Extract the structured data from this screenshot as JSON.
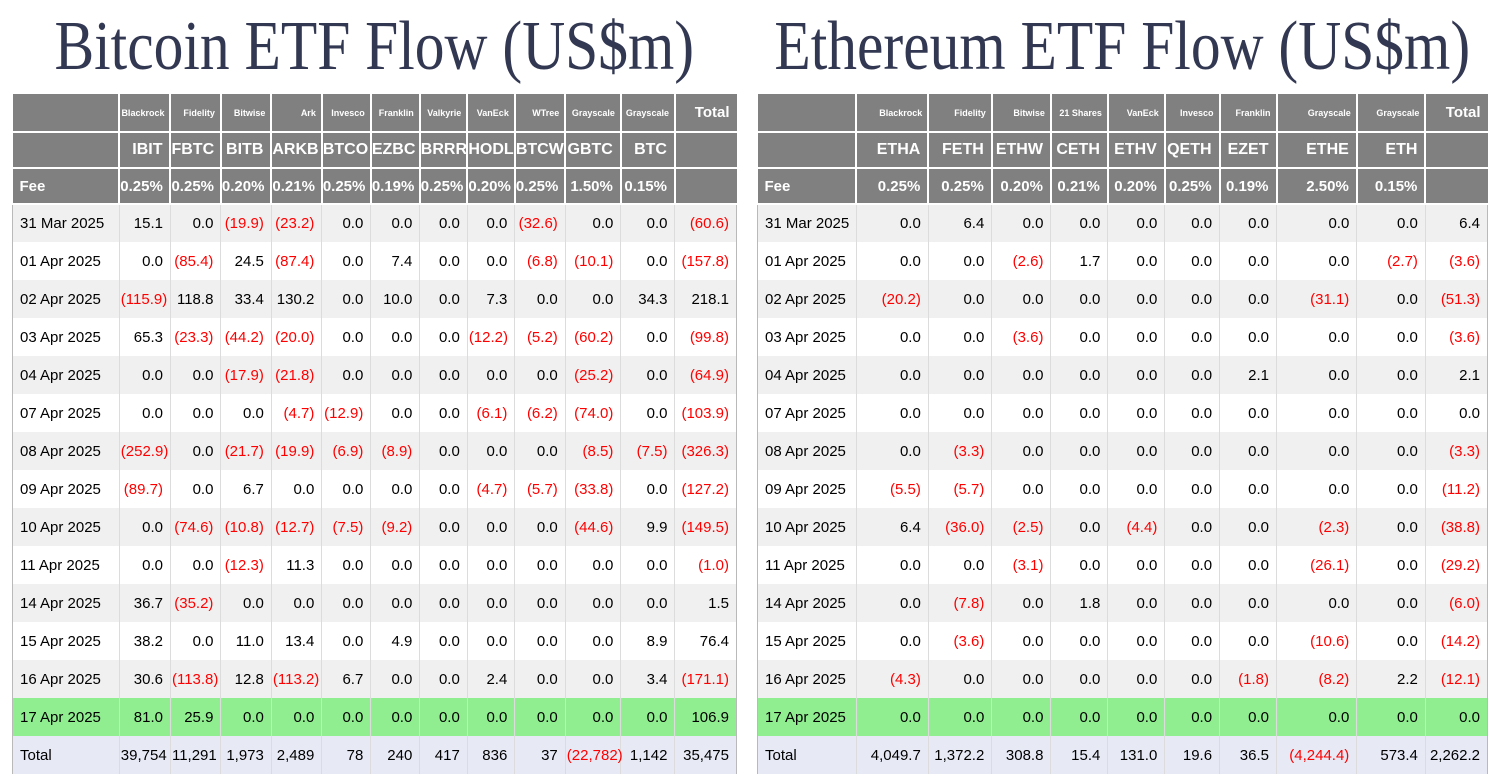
{
  "colors": {
    "header_gray": "#808080",
    "stripe_gray": "#f0f0f0",
    "highlight_green": "#90EE90",
    "total_row_blue": "#E7EAF5",
    "negative_red": "#FF0000",
    "title_navy": "#333852"
  },
  "tables": [
    {
      "title": "Bitcoin ETF Flow (US$m)",
      "providers": [
        "Blackrock",
        "Fidelity",
        "Bitwise",
        "Ark",
        "Invesco",
        "Franklin",
        "Valkyrie",
        "VanEck",
        "WTree",
        "Grayscale",
        "Grayscale"
      ],
      "tickers": [
        "IBIT",
        "FBTC",
        "BITB",
        "ARKB",
        "BTCO",
        "EZBC",
        "BRRR",
        "HODL",
        "BTCW",
        "GBTC",
        "BTC"
      ],
      "fee_label": "Fee",
      "fees": [
        "0.25%",
        "0.25%",
        "0.20%",
        "0.21%",
        "0.25%",
        "0.19%",
        "0.25%",
        "0.20%",
        "0.25%",
        "1.50%",
        "0.15%"
      ],
      "total_label": "Total",
      "highlighted_date": "17 Apr 2025",
      "rows": [
        {
          "date": "31 Mar 2025",
          "values": [
            "15.1",
            "0.0",
            "(19.9)",
            "(23.2)",
            "0.0",
            "0.0",
            "0.0",
            "0.0",
            "(32.6)",
            "0.0",
            "0.0"
          ],
          "total": "(60.6)"
        },
        {
          "date": "01 Apr 2025",
          "values": [
            "0.0",
            "(85.4)",
            "24.5",
            "(87.4)",
            "0.0",
            "7.4",
            "0.0",
            "0.0",
            "(6.8)",
            "(10.1)",
            "0.0"
          ],
          "total": "(157.8)"
        },
        {
          "date": "02 Apr 2025",
          "values": [
            "(115.9)",
            "118.8",
            "33.4",
            "130.2",
            "0.0",
            "10.0",
            "0.0",
            "7.3",
            "0.0",
            "0.0",
            "34.3"
          ],
          "total": "218.1"
        },
        {
          "date": "03 Apr 2025",
          "values": [
            "65.3",
            "(23.3)",
            "(44.2)",
            "(20.0)",
            "0.0",
            "0.0",
            "0.0",
            "(12.2)",
            "(5.2)",
            "(60.2)",
            "0.0"
          ],
          "total": "(99.8)"
        },
        {
          "date": "04 Apr 2025",
          "values": [
            "0.0",
            "0.0",
            "(17.9)",
            "(21.8)",
            "0.0",
            "0.0",
            "0.0",
            "0.0",
            "0.0",
            "(25.2)",
            "0.0"
          ],
          "total": "(64.9)"
        },
        {
          "date": "07 Apr 2025",
          "values": [
            "0.0",
            "0.0",
            "0.0",
            "(4.7)",
            "(12.9)",
            "0.0",
            "0.0",
            "(6.1)",
            "(6.2)",
            "(74.0)",
            "0.0"
          ],
          "total": "(103.9)"
        },
        {
          "date": "08 Apr 2025",
          "values": [
            "(252.9)",
            "0.0",
            "(21.7)",
            "(19.9)",
            "(6.9)",
            "(8.9)",
            "0.0",
            "0.0",
            "0.0",
            "(8.5)",
            "(7.5)"
          ],
          "total": "(326.3)"
        },
        {
          "date": "09 Apr 2025",
          "values": [
            "(89.7)",
            "0.0",
            "6.7",
            "0.0",
            "0.0",
            "0.0",
            "0.0",
            "(4.7)",
            "(5.7)",
            "(33.8)",
            "0.0"
          ],
          "total": "(127.2)"
        },
        {
          "date": "10 Apr 2025",
          "values": [
            "0.0",
            "(74.6)",
            "(10.8)",
            "(12.7)",
            "(7.5)",
            "(9.2)",
            "0.0",
            "0.0",
            "0.0",
            "(44.6)",
            "9.9"
          ],
          "total": "(149.5)"
        },
        {
          "date": "11 Apr 2025",
          "values": [
            "0.0",
            "0.0",
            "(12.3)",
            "11.3",
            "0.0",
            "0.0",
            "0.0",
            "0.0",
            "0.0",
            "0.0",
            "0.0"
          ],
          "total": "(1.0)"
        },
        {
          "date": "14 Apr 2025",
          "values": [
            "36.7",
            "(35.2)",
            "0.0",
            "0.0",
            "0.0",
            "0.0",
            "0.0",
            "0.0",
            "0.0",
            "0.0",
            "0.0"
          ],
          "total": "1.5"
        },
        {
          "date": "15 Apr 2025",
          "values": [
            "38.2",
            "0.0",
            "11.0",
            "13.4",
            "0.0",
            "4.9",
            "0.0",
            "0.0",
            "0.0",
            "0.0",
            "8.9"
          ],
          "total": "76.4"
        },
        {
          "date": "16 Apr 2025",
          "values": [
            "30.6",
            "(113.8)",
            "12.8",
            "(113.2)",
            "6.7",
            "0.0",
            "0.0",
            "2.4",
            "0.0",
            "0.0",
            "3.4"
          ],
          "total": "(171.1)"
        },
        {
          "date": "17 Apr 2025",
          "values": [
            "81.0",
            "25.9",
            "0.0",
            "0.0",
            "0.0",
            "0.0",
            "0.0",
            "0.0",
            "0.0",
            "0.0",
            "0.0"
          ],
          "total": "106.9"
        }
      ],
      "totals": {
        "label": "Total",
        "values": [
          "39,754",
          "11,291",
          "1,973",
          "2,489",
          "78",
          "240",
          "417",
          "836",
          "37",
          "(22,782)",
          "1,142"
        ],
        "total": "35,475"
      }
    },
    {
      "title": "Ethereum ETF Flow (US$m)",
      "providers": [
        "Blackrock",
        "Fidelity",
        "Bitwise",
        "21 Shares",
        "VanEck",
        "Invesco",
        "Franklin",
        "Grayscale",
        "Grayscale"
      ],
      "tickers": [
        "ETHA",
        "FETH",
        "ETHW",
        "CETH",
        "ETHV",
        "QETH",
        "EZET",
        "ETHE",
        "ETH"
      ],
      "fee_label": "Fee",
      "fees": [
        "0.25%",
        "0.25%",
        "0.20%",
        "0.21%",
        "0.20%",
        "0.25%",
        "0.19%",
        "2.50%",
        "0.15%"
      ],
      "total_label": "Total",
      "highlighted_date": "17 Apr 2025",
      "rows": [
        {
          "date": "31 Mar 2025",
          "values": [
            "0.0",
            "6.4",
            "0.0",
            "0.0",
            "0.0",
            "0.0",
            "0.0",
            "0.0",
            "0.0"
          ],
          "total": "6.4"
        },
        {
          "date": "01 Apr 2025",
          "values": [
            "0.0",
            "0.0",
            "(2.6)",
            "1.7",
            "0.0",
            "0.0",
            "0.0",
            "0.0",
            "(2.7)"
          ],
          "total": "(3.6)"
        },
        {
          "date": "02 Apr 2025",
          "values": [
            "(20.2)",
            "0.0",
            "0.0",
            "0.0",
            "0.0",
            "0.0",
            "0.0",
            "(31.1)",
            "0.0"
          ],
          "total": "(51.3)"
        },
        {
          "date": "03 Apr 2025",
          "values": [
            "0.0",
            "0.0",
            "(3.6)",
            "0.0",
            "0.0",
            "0.0",
            "0.0",
            "0.0",
            "0.0"
          ],
          "total": "(3.6)"
        },
        {
          "date": "04 Apr 2025",
          "values": [
            "0.0",
            "0.0",
            "0.0",
            "0.0",
            "0.0",
            "0.0",
            "2.1",
            "0.0",
            "0.0"
          ],
          "total": "2.1"
        },
        {
          "date": "07 Apr 2025",
          "values": [
            "0.0",
            "0.0",
            "0.0",
            "0.0",
            "0.0",
            "0.0",
            "0.0",
            "0.0",
            "0.0"
          ],
          "total": "0.0"
        },
        {
          "date": "08 Apr 2025",
          "values": [
            "0.0",
            "(3.3)",
            "0.0",
            "0.0",
            "0.0",
            "0.0",
            "0.0",
            "0.0",
            "0.0"
          ],
          "total": "(3.3)"
        },
        {
          "date": "09 Apr 2025",
          "values": [
            "(5.5)",
            "(5.7)",
            "0.0",
            "0.0",
            "0.0",
            "0.0",
            "0.0",
            "0.0",
            "0.0"
          ],
          "total": "(11.2)"
        },
        {
          "date": "10 Apr 2025",
          "values": [
            "6.4",
            "(36.0)",
            "(2.5)",
            "0.0",
            "(4.4)",
            "0.0",
            "0.0",
            "(2.3)",
            "0.0"
          ],
          "total": "(38.8)"
        },
        {
          "date": "11 Apr 2025",
          "values": [
            "0.0",
            "0.0",
            "(3.1)",
            "0.0",
            "0.0",
            "0.0",
            "0.0",
            "(26.1)",
            "0.0"
          ],
          "total": "(29.2)"
        },
        {
          "date": "14 Apr 2025",
          "values": [
            "0.0",
            "(7.8)",
            "0.0",
            "1.8",
            "0.0",
            "0.0",
            "0.0",
            "0.0",
            "0.0"
          ],
          "total": "(6.0)"
        },
        {
          "date": "15 Apr 2025",
          "values": [
            "0.0",
            "(3.6)",
            "0.0",
            "0.0",
            "0.0",
            "0.0",
            "0.0",
            "(10.6)",
            "0.0"
          ],
          "total": "(14.2)"
        },
        {
          "date": "16 Apr 2025",
          "values": [
            "(4.3)",
            "0.0",
            "0.0",
            "0.0",
            "0.0",
            "0.0",
            "(1.8)",
            "(8.2)",
            "2.2"
          ],
          "total": "(12.1)"
        },
        {
          "date": "17 Apr 2025",
          "values": [
            "0.0",
            "0.0",
            "0.0",
            "0.0",
            "0.0",
            "0.0",
            "0.0",
            "0.0",
            "0.0"
          ],
          "total": "0.0"
        }
      ],
      "totals": {
        "label": "Total",
        "values": [
          "4,049.7",
          "1,372.2",
          "308.8",
          "15.4",
          "131.0",
          "19.6",
          "36.5",
          "(4,244.4)",
          "573.4"
        ],
        "total": "2,262.2"
      }
    }
  ]
}
